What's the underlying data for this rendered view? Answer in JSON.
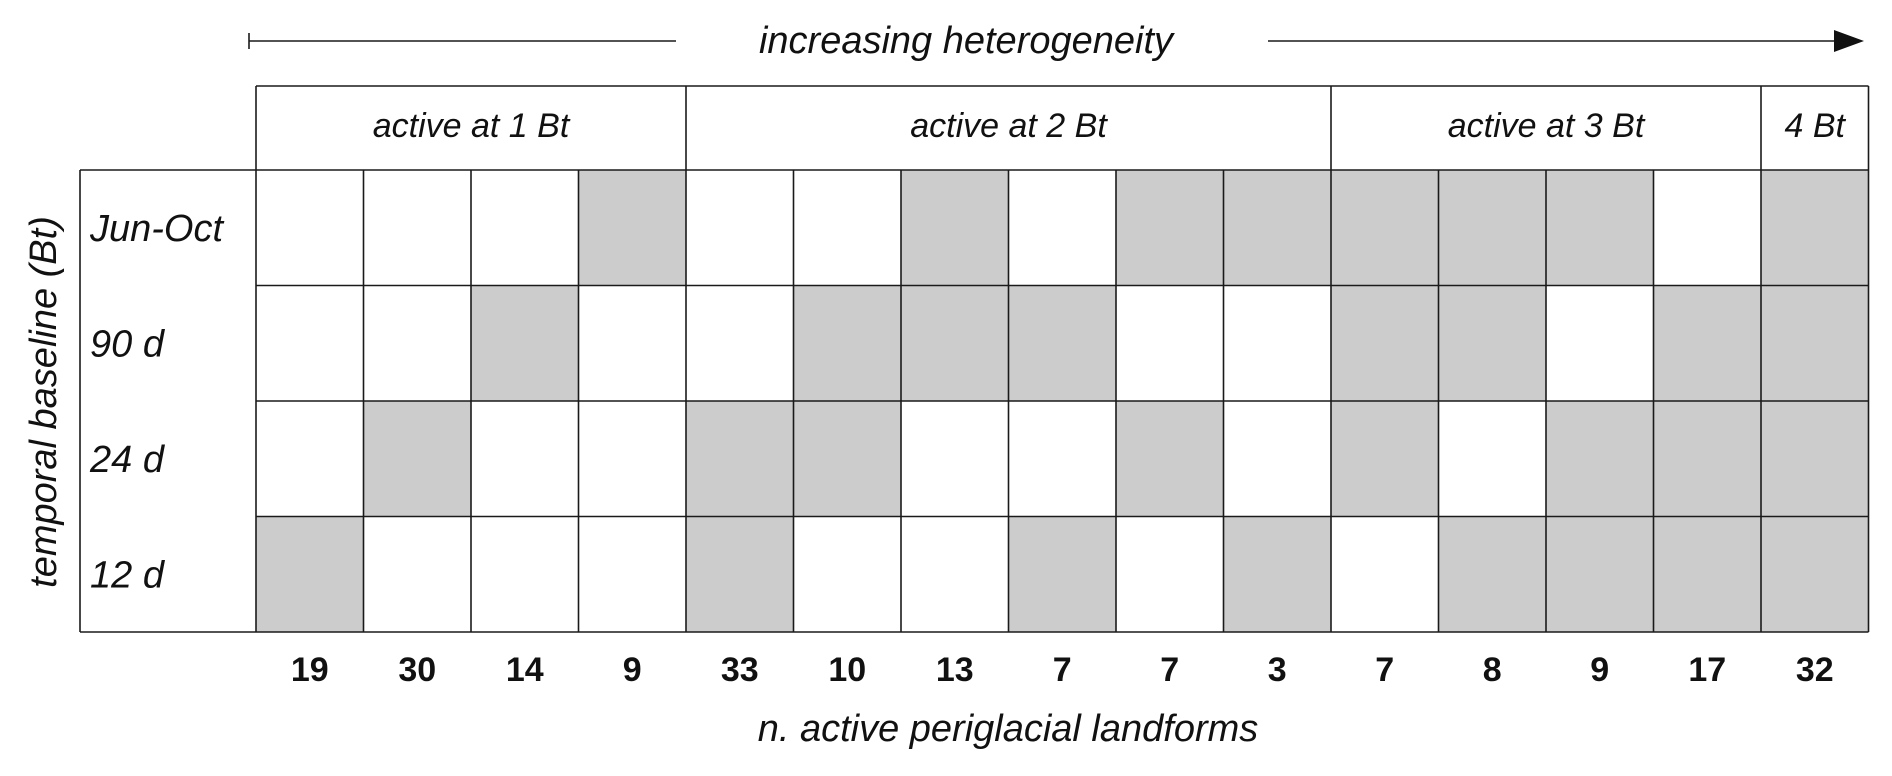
{
  "top_label": "increasing heterogeneity",
  "y_axis_label": "temporal baseline (Bt)",
  "x_axis_label": "n. active periglacial landforms",
  "groups": [
    {
      "label": "active at 1 Bt",
      "span": 4
    },
    {
      "label": "active at 2 Bt",
      "span": 6
    },
    {
      "label": "active at 3 Bt",
      "span": 4
    },
    {
      "label": "4 Bt",
      "span": 1
    }
  ],
  "rows": [
    "Jun-Oct",
    "90 d",
    "24 d",
    "12 d"
  ],
  "counts": [
    "19",
    "30",
    "14",
    "9",
    "33",
    "10",
    "13",
    "7",
    "7",
    "3",
    "7",
    "8",
    "9",
    "17",
    "32"
  ],
  "active_color": "#cccccc",
  "inactive_color": "#ffffff",
  "matrix": [
    [
      0,
      0,
      0,
      1,
      0,
      0,
      1,
      0,
      1,
      1,
      1,
      1,
      1,
      0,
      1
    ],
    [
      0,
      0,
      1,
      0,
      0,
      1,
      1,
      1,
      0,
      0,
      1,
      1,
      0,
      1,
      1
    ],
    [
      0,
      1,
      0,
      0,
      1,
      1,
      0,
      0,
      1,
      0,
      1,
      0,
      1,
      1,
      1
    ],
    [
      1,
      0,
      0,
      0,
      1,
      0,
      0,
      1,
      0,
      1,
      0,
      1,
      1,
      1,
      1
    ]
  ]
}
